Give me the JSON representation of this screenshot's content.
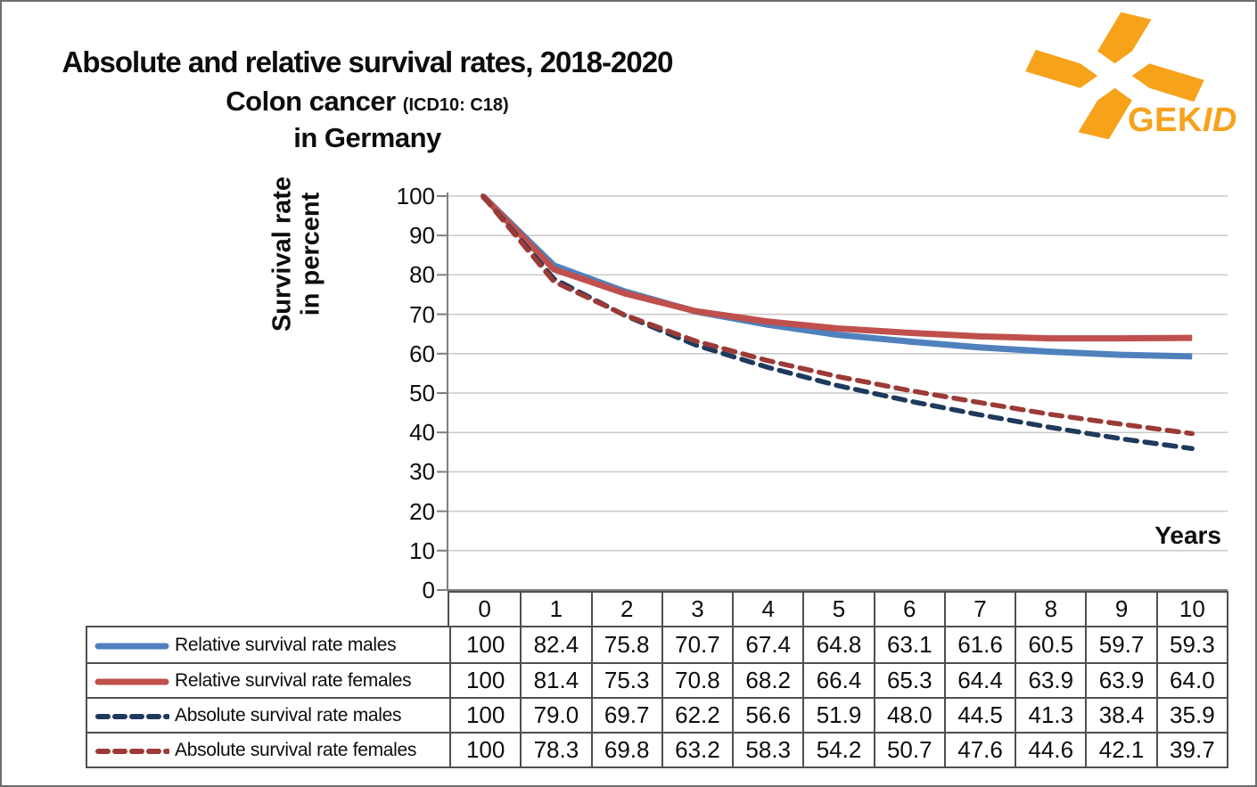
{
  "title": {
    "line1": "Absolute and relative survival rates, 2018-2020",
    "line2_main": "Colon cancer",
    "line2_sub": "(ICD10: C18)",
    "line3": "in Germany"
  },
  "logo": {
    "text_regular": "GEK",
    "text_italic": "ID",
    "color": "#F7A21B"
  },
  "chart_data": {
    "type": "line",
    "x": [
      0,
      1,
      2,
      3,
      4,
      5,
      6,
      7,
      8,
      9,
      10
    ],
    "xlabel": "Years",
    "ylabel_line1": "Survival rate",
    "ylabel_line2": "in percent",
    "ylim": [
      0,
      100
    ],
    "ytick_labels": [
      "0",
      "10",
      "20",
      "30",
      "40",
      "50",
      "60",
      "70",
      "80",
      "90",
      "100"
    ],
    "grid": true,
    "legend_position": "table-left-bottom",
    "series": [
      {
        "name": "Relative survival rate males",
        "color": "#4F81BD",
        "dash": false,
        "values": [
          100,
          82.4,
          75.8,
          70.7,
          67.4,
          64.8,
          63.1,
          61.6,
          60.5,
          59.7,
          59.3
        ],
        "display": [
          "100",
          "82.4",
          "75.8",
          "70.7",
          "67.4",
          "64.8",
          "63.1",
          "61.6",
          "60.5",
          "59.7",
          "59.3"
        ]
      },
      {
        "name": "Relative survival rate females",
        "color": "#C0504D",
        "dash": false,
        "values": [
          100,
          81.4,
          75.3,
          70.8,
          68.2,
          66.4,
          65.3,
          64.4,
          63.9,
          63.9,
          64.0
        ],
        "display": [
          "100",
          "81.4",
          "75.3",
          "70.8",
          "68.2",
          "66.4",
          "65.3",
          "64.4",
          "63.9",
          "63.9",
          "64.0"
        ]
      },
      {
        "name": "Absolute survival rate males",
        "color": "#1E3A5C",
        "dash": true,
        "values": [
          100,
          79.0,
          69.7,
          62.2,
          56.6,
          51.9,
          48.0,
          44.5,
          41.3,
          38.4,
          35.9
        ],
        "display": [
          "100",
          "79.0",
          "69.7",
          "62.2",
          "56.6",
          "51.9",
          "48.0",
          "44.5",
          "41.3",
          "38.4",
          "35.9"
        ]
      },
      {
        "name": "Absolute survival rate females",
        "color": "#9B3A36",
        "dash": true,
        "values": [
          100,
          78.3,
          69.8,
          63.2,
          58.3,
          54.2,
          50.7,
          47.6,
          44.6,
          42.1,
          39.7
        ],
        "display": [
          "100",
          "78.3",
          "69.8",
          "63.2",
          "58.3",
          "54.2",
          "50.7",
          "47.6",
          "44.6",
          "42.1",
          "39.7"
        ]
      }
    ],
    "style_colors": {
      "gridline": "#C9C9C9",
      "axis": "#7F7F7F",
      "table_border": "#4f4f4f"
    }
  }
}
